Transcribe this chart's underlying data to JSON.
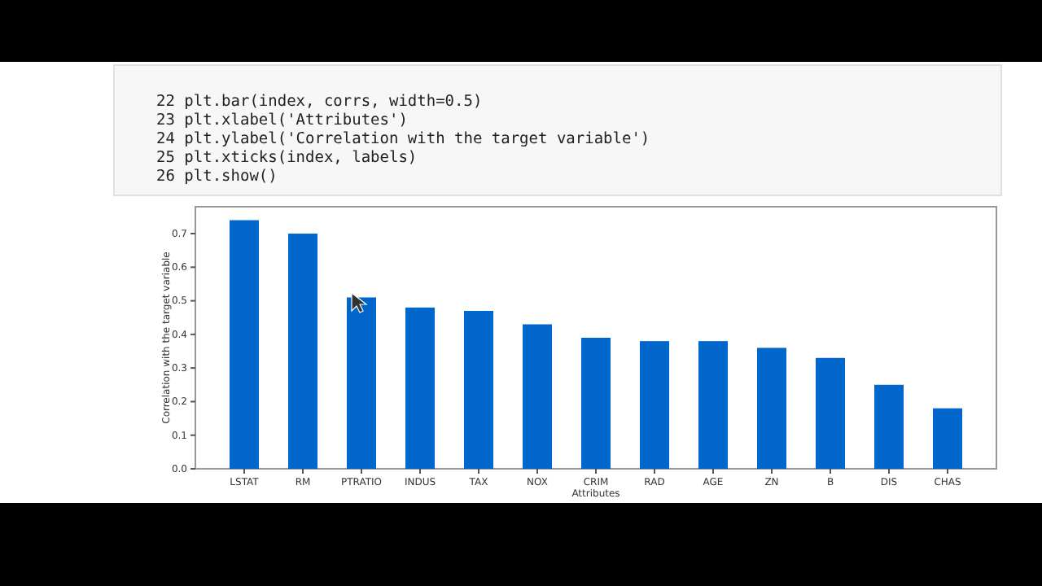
{
  "chart_data": {
    "type": "bar",
    "xlabel": "Attributes",
    "ylabel": "Correlation with the target variable",
    "categories": [
      "LSTAT",
      "RM",
      "PTRATIO",
      "INDUS",
      "TAX",
      "NOX",
      "CRIM",
      "RAD",
      "AGE",
      "ZN",
      "B",
      "DIS",
      "CHAS"
    ],
    "values": [
      0.74,
      0.7,
      0.51,
      0.48,
      0.47,
      0.43,
      0.39,
      0.38,
      0.38,
      0.36,
      0.33,
      0.25,
      0.18
    ],
    "color": "#0066cc",
    "ylim": [
      0,
      0.78
    ],
    "yticks": [
      {
        "value": 0,
        "label": "0.0"
      },
      0.1,
      0.2,
      0.3,
      0.4,
      0.5,
      0.6,
      0.7
    ],
    "grid": false,
    "annotations": [
      "22 plt.bar(index, corrs, width=0.5)",
      "23 plt.xlabel('Attributes')",
      "24 plt.ylabel('Correlation with the target variable')",
      "25 plt.xticks(index, labels)",
      "26 plt.show()"
    ]
  }
}
